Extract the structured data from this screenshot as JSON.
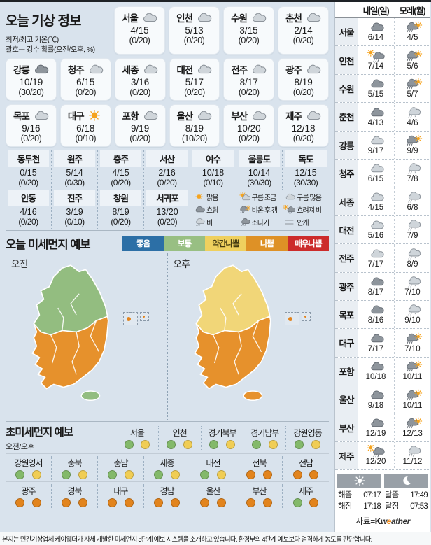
{
  "page": {
    "footer": "본지는 민간기상업체 케이웨더가 자체 개발한 미세먼지 5단계 예보 시스템을 소개하고 있습니다. 환경부의 4단계 예보보다 엄격하게 농도를 판단합니다.",
    "source_label": "자료=",
    "brand_k": "K",
    "brand_w": "w",
    "brand_e": "e",
    "brand_rest": "ather"
  },
  "today": {
    "title": "오늘 기상 정보",
    "note1": "최저/최고 기온(℃)",
    "note2": "괄호는 강수 확률(오전/오후, %)",
    "cards_row1": [
      {
        "name": "서울",
        "icon": "cloud-light",
        "temp": "4/15",
        "prob": "(0/20)"
      },
      {
        "name": "인천",
        "icon": "cloud-light",
        "temp": "5/13",
        "prob": "(0/20)"
      },
      {
        "name": "수원",
        "icon": "cloud-light",
        "temp": "3/15",
        "prob": "(0/20)"
      },
      {
        "name": "춘천",
        "icon": "cloud-light",
        "temp": "2/14",
        "prob": "(0/20)"
      }
    ],
    "cards_row2": [
      {
        "name": "강릉",
        "icon": "cloud-dark",
        "temp": "10/19",
        "prob": "(30/20)"
      },
      {
        "name": "청주",
        "icon": "cloud-light",
        "temp": "6/15",
        "prob": "(0/20)"
      },
      {
        "name": "세종",
        "icon": "cloud-light",
        "temp": "3/16",
        "prob": "(0/20)"
      },
      {
        "name": "대전",
        "icon": "cloud-light",
        "temp": "5/17",
        "prob": "(0/20)"
      },
      {
        "name": "전주",
        "icon": "cloud-light",
        "temp": "8/17",
        "prob": "(0/20)"
      },
      {
        "name": "광주",
        "icon": "cloud-light",
        "temp": "8/19",
        "prob": "(0/20)"
      }
    ],
    "cards_row3": [
      {
        "name": "목포",
        "icon": "cloud-light",
        "temp": "9/16",
        "prob": "(0/20)"
      },
      {
        "name": "대구",
        "icon": "sun",
        "temp": "6/18",
        "prob": "(0/10)"
      },
      {
        "name": "포항",
        "icon": "cloud-light",
        "temp": "9/19",
        "prob": "(0/20)"
      },
      {
        "name": "울산",
        "icon": "cloud-light",
        "temp": "8/19",
        "prob": "(10/20)"
      },
      {
        "name": "부산",
        "icon": "cloud-light",
        "temp": "10/20",
        "prob": "(0/20)"
      },
      {
        "name": "제주",
        "icon": "cloud-light",
        "temp": "12/18",
        "prob": "(0/20)"
      }
    ],
    "table_row1": [
      {
        "name": "동두천",
        "temp": "0/15",
        "prob": "(0/20)"
      },
      {
        "name": "원주",
        "temp": "5/14",
        "prob": "(0/30)"
      },
      {
        "name": "충주",
        "temp": "4/15",
        "prob": "(0/20)"
      },
      {
        "name": "서산",
        "temp": "2/16",
        "prob": "(0/20)"
      },
      {
        "name": "여수",
        "temp": "10/18",
        "prob": "(0/10)"
      },
      {
        "name": "울릉도",
        "temp": "10/14",
        "prob": "(30/30)"
      },
      {
        "name": "독도",
        "temp": "12/15",
        "prob": "(30/30)"
      }
    ],
    "table_row2": [
      {
        "name": "안동",
        "temp": "4/16",
        "prob": "(0/20)"
      },
      {
        "name": "진주",
        "temp": "3/19",
        "prob": "(0/10)"
      },
      {
        "name": "창원",
        "temp": "8/19",
        "prob": "(0/20)"
      },
      {
        "name": "서귀포",
        "temp": "13/20",
        "prob": "(0/20)"
      }
    ],
    "icon_legend": [
      {
        "icon": "sun",
        "label": "맑음"
      },
      {
        "icon": "sun-cloud",
        "label": "구름 조금"
      },
      {
        "icon": "cloud-light",
        "label": "구름 많음"
      },
      {
        "icon": "cloud-dark",
        "label": "흐림"
      },
      {
        "icon": "rain-sun",
        "label": "비온 후 갬"
      },
      {
        "icon": "sun-rain",
        "label": "흐려져 비"
      },
      {
        "icon": "rain",
        "label": "비"
      },
      {
        "icon": "shower",
        "label": "소나기"
      },
      {
        "icon": "fog",
        "label": "안개"
      }
    ]
  },
  "dust": {
    "title": "오늘 미세먼지 예보",
    "legend": [
      {
        "label": "좋음",
        "bg": "#2c6fa6",
        "fg": "#ffffff"
      },
      {
        "label": "보통",
        "bg": "#98bf83",
        "fg": "#ffffff"
      },
      {
        "label": "약간나쁨",
        "bg": "#efd05e",
        "fg": "#433a10"
      },
      {
        "label": "나쁨",
        "bg": "#de9126",
        "fg": "#ffffff"
      },
      {
        "label": "매우나쁨",
        "bg": "#cc2b2b",
        "fg": "#ffffff"
      }
    ],
    "map_am": {
      "label": "오전",
      "north": "#93bd80",
      "south": "#e6912c",
      "jeju": "#93bd80"
    },
    "map_pm": {
      "label": "오후",
      "north": "#f1d678",
      "south": "#e6912c",
      "jeju": "#e6912c"
    },
    "inset_dot_style": "background:#e2841d"
  },
  "ultrafine": {
    "title": "초미세먼지 예보",
    "subtitle": "오전/오후",
    "row1": [
      {
        "name": "서울",
        "am": "green",
        "pm": "yellow"
      },
      {
        "name": "인천",
        "am": "green",
        "pm": "yellow"
      },
      {
        "name": "경기북부",
        "am": "green",
        "pm": "yellow"
      },
      {
        "name": "경기남부",
        "am": "green",
        "pm": "yellow"
      },
      {
        "name": "강원영동",
        "am": "green",
        "pm": "yellow"
      }
    ],
    "row2": [
      {
        "name": "강원영서",
        "am": "green",
        "pm": "yellow"
      },
      {
        "name": "충북",
        "am": "green",
        "pm": "yellow"
      },
      {
        "name": "충남",
        "am": "green",
        "pm": "yellow"
      },
      {
        "name": "세종",
        "am": "green",
        "pm": "yellow"
      },
      {
        "name": "대전",
        "am": "green",
        "pm": "yellow"
      },
      {
        "name": "전북",
        "am": "orange",
        "pm": "orange"
      },
      {
        "name": "전남",
        "am": "orange",
        "pm": "orange"
      }
    ],
    "row3": [
      {
        "name": "광주",
        "am": "orange",
        "pm": "orange"
      },
      {
        "name": "경북",
        "am": "orange",
        "pm": "orange"
      },
      {
        "name": "대구",
        "am": "orange",
        "pm": "orange"
      },
      {
        "name": "경남",
        "am": "orange",
        "pm": "orange"
      },
      {
        "name": "울산",
        "am": "orange",
        "pm": "orange"
      },
      {
        "name": "부산",
        "am": "orange",
        "pm": "orange"
      },
      {
        "name": "제주",
        "am": "green",
        "pm": "orange"
      }
    ]
  },
  "dot_colors": {
    "green": "#83b96a",
    "yellow": "#f0cd55",
    "orange": "#e2841d"
  },
  "forecast": {
    "col1": "내일(일)",
    "col2": "모레(월)",
    "rows": [
      {
        "city": "서울",
        "d1_icon": "cloud-dark",
        "d1": "6/14",
        "d2_icon": "rain-sun",
        "d2": "4/5"
      },
      {
        "city": "인천",
        "d1_icon": "sun-rain",
        "d1": "7/14",
        "d2_icon": "rain-sun",
        "d2": "5/6"
      },
      {
        "city": "수원",
        "d1_icon": "cloud-dark",
        "d1": "5/15",
        "d2_icon": "rain-sun",
        "d2": "5/7"
      },
      {
        "city": "춘천",
        "d1_icon": "cloud-dark",
        "d1": "4/13",
        "d2_icon": "rain-snow",
        "d2": "4/6"
      },
      {
        "city": "강릉",
        "d1_icon": "cloud-light",
        "d1": "9/17",
        "d2_icon": "rain-sun",
        "d2": "9/9"
      },
      {
        "city": "청주",
        "d1_icon": "cloud-light",
        "d1": "6/15",
        "d2_icon": "rain-snow",
        "d2": "7/8"
      },
      {
        "city": "세종",
        "d1_icon": "cloud-light",
        "d1": "4/15",
        "d2_icon": "rain-snow",
        "d2": "6/8"
      },
      {
        "city": "대전",
        "d1_icon": "cloud-light",
        "d1": "5/16",
        "d2_icon": "rain-snow",
        "d2": "7/9"
      },
      {
        "city": "전주",
        "d1_icon": "cloud-light",
        "d1": "7/17",
        "d2_icon": "rain-snow",
        "d2": "8/9"
      },
      {
        "city": "광주",
        "d1_icon": "cloud-dark",
        "d1": "8/17",
        "d2_icon": "rain-snow",
        "d2": "7/10"
      },
      {
        "city": "목포",
        "d1_icon": "cloud-dark",
        "d1": "8/16",
        "d2_icon": "rain-snow",
        "d2": "9/10"
      },
      {
        "city": "대구",
        "d1_icon": "cloud-dark",
        "d1": "7/17",
        "d2_icon": "rain-sun",
        "d2": "7/10"
      },
      {
        "city": "포항",
        "d1_icon": "cloud-dark",
        "d1": "10/18",
        "d2_icon": "rain-sun",
        "d2": "10/11"
      },
      {
        "city": "울산",
        "d1_icon": "cloud-dark",
        "d1": "9/18",
        "d2_icon": "rain-sun",
        "d2": "10/11"
      },
      {
        "city": "부산",
        "d1_icon": "cloud-dark",
        "d1": "12/19",
        "d2_icon": "rain-sun",
        "d2": "12/13"
      },
      {
        "city": "제주",
        "d1_icon": "sun-rain",
        "d1": "12/20",
        "d2_icon": "rain",
        "d2": "11/12"
      }
    ]
  },
  "sunmoon": {
    "sunrise_label": "해뜸",
    "sunrise": "07:17",
    "sunset_label": "해짐",
    "sunset": "17:18",
    "moonrise_label": "달뜸",
    "moonrise": "17:49",
    "moonset_label": "달짐",
    "moonset": "07:53"
  }
}
